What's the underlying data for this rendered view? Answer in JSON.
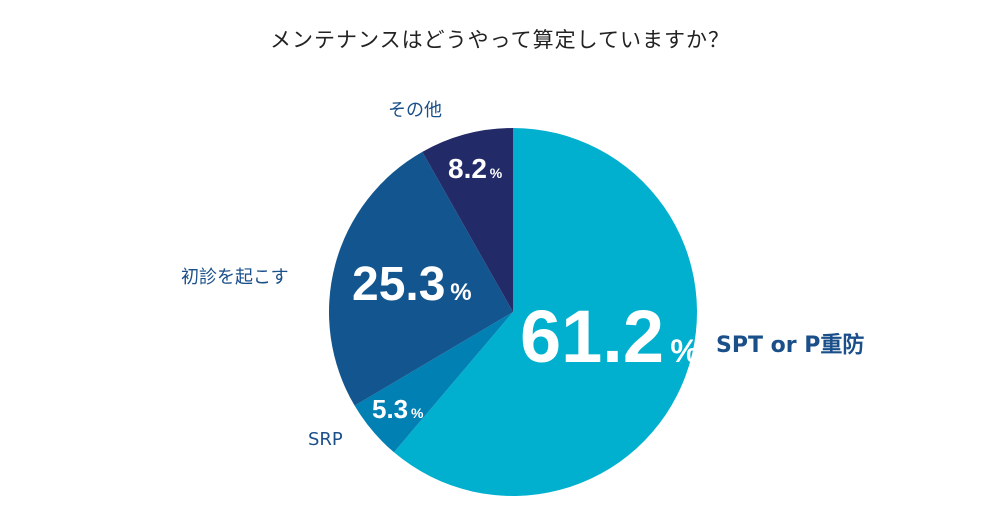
{
  "chart_data": {
    "type": "pie",
    "title": "メンテナンスはどうやって算定していますか？",
    "start": "top",
    "direction": "clockwise",
    "slices": [
      {
        "label": "SPT or P重防",
        "value": 61.2,
        "value_text": "61.2",
        "color": "#00b0ce"
      },
      {
        "label": "SRP",
        "value": 5.3,
        "value_text": "5.3",
        "color": "#0080b3"
      },
      {
        "label": "初診を起こす",
        "value": 25.3,
        "value_text": "25.3",
        "color": "#12558f"
      },
      {
        "label": "その他",
        "value": 8.2,
        "value_text": "8.2",
        "color": "#232a68"
      }
    ],
    "percent_sign": "%",
    "label_color": "#1a4f8a"
  }
}
